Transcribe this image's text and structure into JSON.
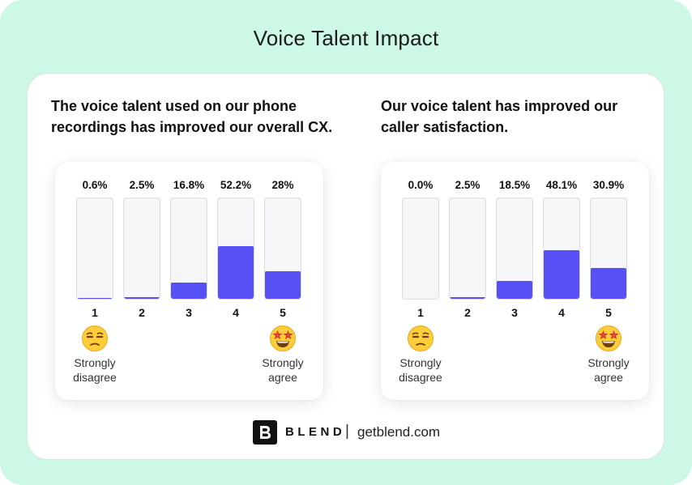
{
  "title": "Voice Talent Impact",
  "icons": {
    "low": "unamused-face-emoji",
    "high": "star-struck-face-emoji"
  },
  "colors": {
    "background": "#cdf8e6",
    "bar": "#5650f5",
    "track": "#f6f6f8"
  },
  "footer": {
    "brand": "BLEND",
    "separator": "|",
    "site": "getblend.com"
  },
  "chart_data": [
    {
      "type": "bar",
      "title": "The voice talent used on our phone recordings has improved our overall CX.",
      "categories": [
        "1",
        "2",
        "3",
        "4",
        "5"
      ],
      "values": [
        0.6,
        2.5,
        16.8,
        52.2,
        28
      ],
      "value_labels": [
        "0.6%",
        "2.5%",
        "16.8%",
        "52.2%",
        "28%"
      ],
      "ylim": [
        0,
        100
      ],
      "anchors": {
        "low": "Strongly disagree",
        "high": "Strongly agree"
      }
    },
    {
      "type": "bar",
      "title": "Our voice talent has improved our caller satisfaction.",
      "categories": [
        "1",
        "2",
        "3",
        "4",
        "5"
      ],
      "values": [
        0.0,
        2.5,
        18.5,
        48.1,
        30.9
      ],
      "value_labels": [
        "0.0%",
        "2.5%",
        "18.5%",
        "48.1%",
        "30.9%"
      ],
      "ylim": [
        0,
        100
      ],
      "anchors": {
        "low": "Strongly disagree",
        "high": "Strongly agree"
      }
    }
  ]
}
